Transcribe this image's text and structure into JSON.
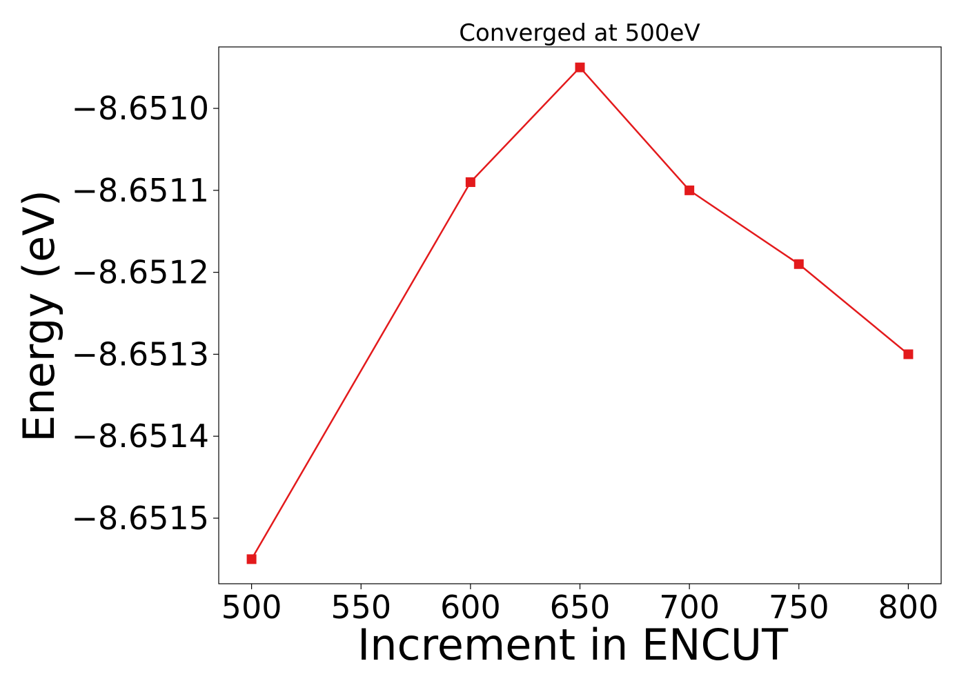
{
  "chart_data": {
    "type": "line",
    "title": "Converged at 500eV",
    "xlabel": "Increment in ENCUT",
    "ylabel": "Energy (eV)",
    "x": [
      500,
      600,
      650,
      700,
      750,
      800
    ],
    "series": [
      {
        "values": [
          -8.65155,
          -8.65109,
          -8.65095,
          -8.6511,
          -8.65119,
          -8.6513
        ],
        "color": "#e31a1c",
        "marker": "square"
      }
    ],
    "xticks": [
      500,
      550,
      600,
      650,
      700,
      750,
      800
    ],
    "xtick_labels": [
      "500",
      "550",
      "600",
      "650",
      "700",
      "750",
      "800"
    ],
    "yticks": [
      -8.6515,
      -8.6514,
      -8.6513,
      -8.6512,
      -8.6511,
      -8.651
    ],
    "ytick_labels": [
      "−8.6515",
      "−8.6514",
      "−8.6513",
      "−8.6512",
      "−8.6511",
      "−8.6510"
    ],
    "xlim": [
      485,
      815
    ],
    "ylim": [
      -8.65158,
      -8.650925
    ],
    "grid": false,
    "legend": "none"
  }
}
